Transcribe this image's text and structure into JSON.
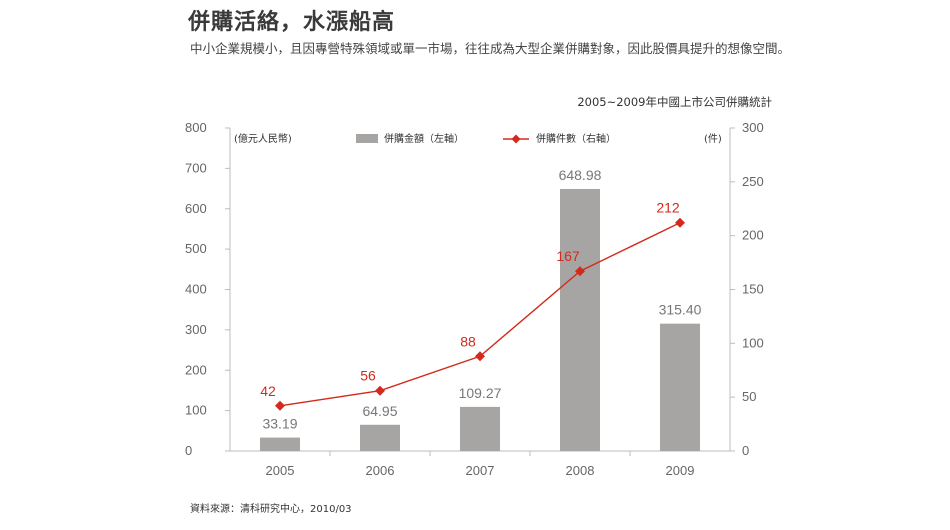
{
  "headline": "併購活絡，水漲船高",
  "subtitle": "中小企業規模小，且因專營特殊領域或單一市場，往往成為大型企業併購對象，因此股價具提升的想像空間。",
  "source": "資料來源：清科研究中心，2010/03",
  "chart_data": {
    "type": "bar",
    "title": "2005~2009年中國上市公司併購統計",
    "categories": [
      "2005",
      "2006",
      "2007",
      "2008",
      "2009"
    ],
    "left_axis": {
      "label": "(億元人民幣)",
      "range": [
        0,
        800
      ],
      "ticks": [
        "0",
        "100",
        "200",
        "300",
        "400",
        "500",
        "600",
        "700",
        "800"
      ]
    },
    "right_axis": {
      "label": "(件)",
      "range": [
        0,
        300
      ],
      "ticks": [
        "0",
        "50",
        "100",
        "150",
        "200",
        "250",
        "300"
      ]
    },
    "series": [
      {
        "name": "併購金額（左軸）",
        "type": "bar",
        "axis": "left",
        "color": "#a6a5a3",
        "values": [
          33.19,
          64.95,
          109.27,
          648.98,
          315.4
        ],
        "labels": [
          "33.19",
          "64.95",
          "109.27",
          "648.98",
          "315.40"
        ]
      },
      {
        "name": "併購件數（右軸）",
        "type": "line",
        "axis": "right",
        "color": "#d42a1c",
        "values": [
          42,
          56,
          88,
          167,
          212
        ],
        "labels": [
          "42",
          "56",
          "88",
          "167",
          "212"
        ]
      }
    ],
    "legend_position": "top-center",
    "grid": false
  }
}
